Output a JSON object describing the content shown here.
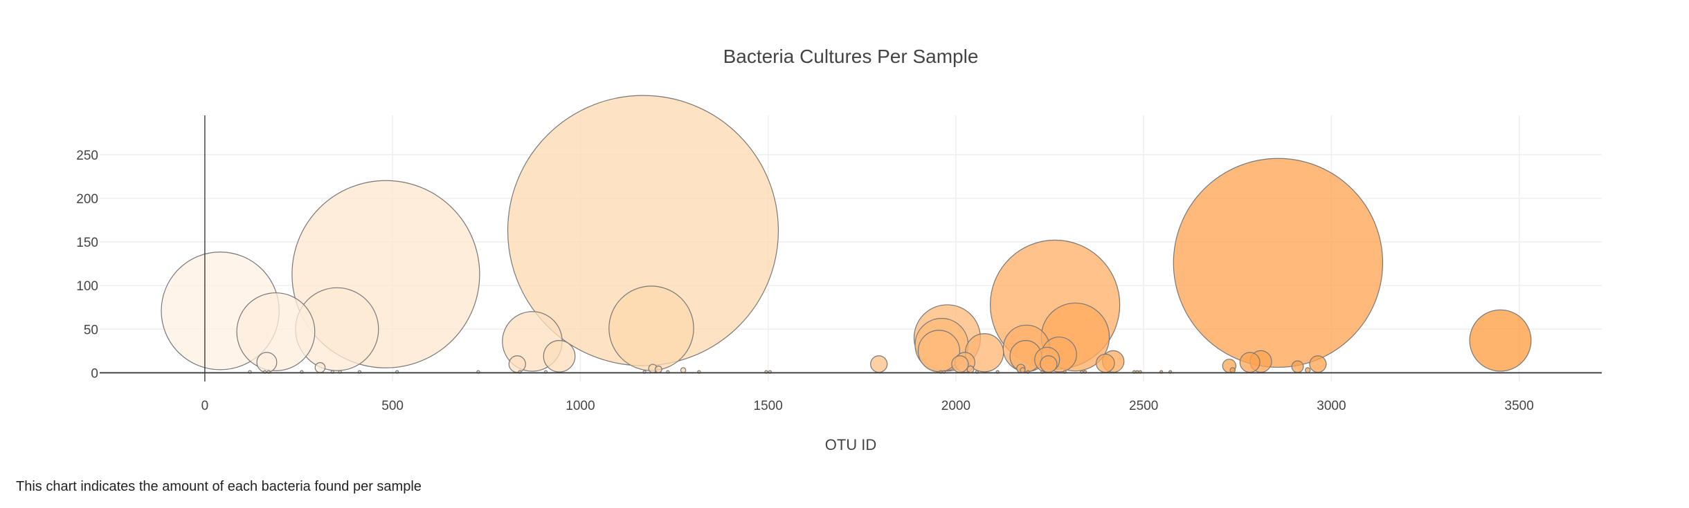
{
  "chart_data": {
    "type": "scatter",
    "title": "Bacteria Cultures Per Sample",
    "xlabel": "OTU ID",
    "ylabel": "",
    "xlim": [
      -280,
      3720
    ],
    "ylim": [
      -10,
      295
    ],
    "xticks": [
      0,
      500,
      1000,
      1500,
      2000,
      2500,
      3000,
      3500
    ],
    "yticks": [
      0,
      50,
      100,
      150,
      200,
      250
    ],
    "grid": true,
    "legend": "none",
    "colorscale": [
      "#fdf1e4",
      "#fcd9b0",
      "#ffaa5e",
      "#ff9a3c"
    ],
    "marker_size": "proportional to value",
    "points": [
      {
        "x": 41,
        "y": 71
      },
      {
        "x": 189,
        "y": 47
      },
      {
        "x": 352,
        "y": 50
      },
      {
        "x": 482,
        "y": 113
      },
      {
        "x": 165,
        "y": 12
      },
      {
        "x": 307,
        "y": 6
      },
      {
        "x": 832,
        "y": 10
      },
      {
        "x": 872,
        "y": 36
      },
      {
        "x": 944,
        "y": 19
      },
      {
        "x": 1167,
        "y": 163
      },
      {
        "x": 1189,
        "y": 51
      },
      {
        "x": 1193,
        "y": 5
      },
      {
        "x": 1208,
        "y": 4
      },
      {
        "x": 1274,
        "y": 3
      },
      {
        "x": 1795,
        "y": 10
      },
      {
        "x": 1977,
        "y": 40
      },
      {
        "x": 1962,
        "y": 32
      },
      {
        "x": 1955,
        "y": 25
      },
      {
        "x": 2011,
        "y": 10
      },
      {
        "x": 2024,
        "y": 12
      },
      {
        "x": 2039,
        "y": 4
      },
      {
        "x": 2076,
        "y": 23
      },
      {
        "x": 2173,
        "y": 5
      },
      {
        "x": 2188,
        "y": 28
      },
      {
        "x": 2186,
        "y": 19
      },
      {
        "x": 2178,
        "y": 3
      },
      {
        "x": 2264,
        "y": 78
      },
      {
        "x": 2318,
        "y": 41
      },
      {
        "x": 2275,
        "y": 21
      },
      {
        "x": 2243,
        "y": 15
      },
      {
        "x": 2247,
        "y": 10
      },
      {
        "x": 2398,
        "y": 11
      },
      {
        "x": 2419,
        "y": 13
      },
      {
        "x": 2858,
        "y": 126
      },
      {
        "x": 2812,
        "y": 13
      },
      {
        "x": 2783,
        "y": 12
      },
      {
        "x": 2728,
        "y": 8
      },
      {
        "x": 2737,
        "y": 3
      },
      {
        "x": 2910,
        "y": 7
      },
      {
        "x": 2964,
        "y": 10
      },
      {
        "x": 2937,
        "y": 3
      },
      {
        "x": 3450,
        "y": 37
      },
      {
        "x": 120,
        "y": 1
      },
      {
        "x": 160,
        "y": 1
      },
      {
        "x": 170,
        "y": 1
      },
      {
        "x": 258,
        "y": 1
      },
      {
        "x": 340,
        "y": 1
      },
      {
        "x": 360,
        "y": 1
      },
      {
        "x": 412,
        "y": 1
      },
      {
        "x": 512,
        "y": 1
      },
      {
        "x": 728,
        "y": 1
      },
      {
        "x": 839,
        "y": 1
      },
      {
        "x": 908,
        "y": 1
      },
      {
        "x": 1171,
        "y": 1
      },
      {
        "x": 1233,
        "y": 1
      },
      {
        "x": 1316,
        "y": 1
      },
      {
        "x": 1495,
        "y": 1
      },
      {
        "x": 1505,
        "y": 1
      },
      {
        "x": 1960,
        "y": 1
      },
      {
        "x": 1968,
        "y": 1
      },
      {
        "x": 2056,
        "y": 1
      },
      {
        "x": 2111,
        "y": 1
      },
      {
        "x": 2192,
        "y": 1
      },
      {
        "x": 2230,
        "y": 1
      },
      {
        "x": 2290,
        "y": 1
      },
      {
        "x": 2335,
        "y": 1
      },
      {
        "x": 2344,
        "y": 1
      },
      {
        "x": 2475,
        "y": 1
      },
      {
        "x": 2483,
        "y": 1
      },
      {
        "x": 2491,
        "y": 1
      },
      {
        "x": 2547,
        "y": 1
      },
      {
        "x": 2571,
        "y": 1
      }
    ]
  },
  "caption": "This chart indicates the amount of each bacteria found per sample"
}
